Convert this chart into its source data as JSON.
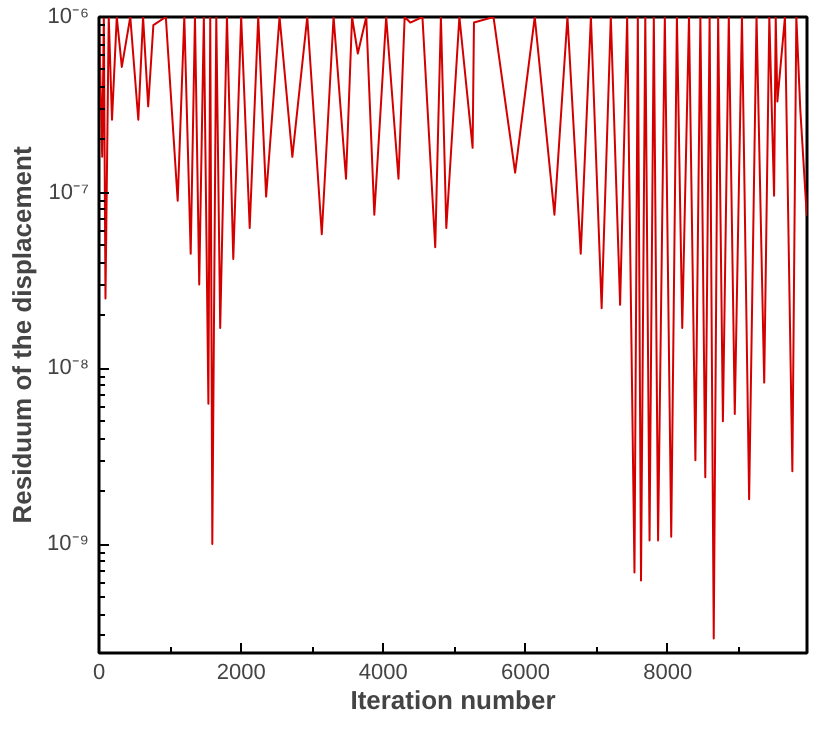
{
  "chart_data": {
    "type": "line",
    "xlabel": "Iteration number",
    "ylabel": "Residuum of the displacement",
    "log": "y",
    "grid": false,
    "marker": "none",
    "line_style": "solid",
    "xlim": [
      0,
      9960
    ],
    "ylim": [
      2.4e-10,
      1e-06
    ],
    "xticks": [
      0,
      2000,
      4000,
      6000,
      8000
    ],
    "yticks": [
      {
        "value": 1e-09,
        "label": "10⁻⁹"
      },
      {
        "value": 1e-08,
        "label": "10⁻⁸"
      },
      {
        "value": 1e-07,
        "label": "10⁻⁷"
      },
      {
        "value": 1e-06,
        "label": "10⁻⁶"
      }
    ],
    "series": [
      {
        "color": "#d40000",
        "x": [
          0,
          45,
          68,
          91,
          137,
          183,
          250,
          321,
          440,
          553,
          620,
          692,
          765,
          940,
          1107,
          1200,
          1290,
          1350,
          1410,
          1475,
          1539,
          1565,
          1594,
          1650,
          1705,
          1800,
          1889,
          2000,
          2120,
          2240,
          2351,
          2540,
          2720,
          2930,
          3134,
          3300,
          3475,
          3560,
          3641,
          3760,
          3873,
          4040,
          4213,
          4300,
          4379,
          4550,
          4730,
          4810,
          4886,
          5070,
          5256,
          5275,
          5550,
          5854,
          6130,
          6407,
          6590,
          6777,
          6920,
          7071,
          7200,
          7331,
          7430,
          7533,
          7580,
          7625,
          7685,
          7745,
          7805,
          7865,
          7960,
          8050,
          8130,
          8205,
          8300,
          8390,
          8460,
          8529,
          8590,
          8648,
          8710,
          8777,
          8860,
          8944,
          9045,
          9146,
          9250,
          9358,
          9430,
          9497,
          9520,
          9543,
          9650,
          9754,
          9810,
          9865,
          9957
        ],
        "values": [
          1e-06,
          1.6e-07,
          1e-06,
          2.5e-08,
          1e-06,
          2.6e-07,
          1e-06,
          5.2e-07,
          1e-06,
          2.6e-07,
          1e-06,
          3.1e-07,
          9e-07,
          1e-06,
          9e-08,
          1e-06,
          4.5e-08,
          1e-06,
          3e-08,
          1e-06,
          6.3e-09,
          1e-06,
          1e-09,
          1e-06,
          1.7e-08,
          1e-06,
          4.2e-08,
          1e-06,
          6.3e-08,
          1e-06,
          9.5e-08,
          1e-06,
          1.6e-07,
          1e-06,
          5.8e-08,
          1e-06,
          1.2e-07,
          1e-06,
          6.2e-07,
          1e-06,
          7.5e-08,
          1e-06,
          1.2e-07,
          1e-06,
          9.3e-07,
          1e-06,
          4.9e-08,
          1e-06,
          6.3e-08,
          1e-06,
          1.8e-07,
          9.3e-07,
          1e-06,
          1.3e-07,
          1e-06,
          7.5e-08,
          1e-06,
          4.5e-08,
          1e-06,
          2.2e-08,
          1e-06,
          2.3e-08,
          1e-06,
          6.9e-10,
          1e-06,
          6.2e-10,
          1e-06,
          1.05e-09,
          1e-06,
          1.05e-09,
          1e-06,
          1.1e-09,
          1e-06,
          1.7e-08,
          1e-06,
          3e-09,
          1e-06,
          2.4e-09,
          1e-06,
          2.9e-10,
          1e-06,
          5e-09,
          1e-06,
          5.5e-09,
          1e-06,
          1.8e-09,
          1e-06,
          8.3e-09,
          1e-06,
          9.6e-08,
          1e-06,
          3.3e-07,
          1e-06,
          2.6e-09,
          1e-06,
          3e-07,
          7.4e-08
        ]
      }
    ]
  }
}
